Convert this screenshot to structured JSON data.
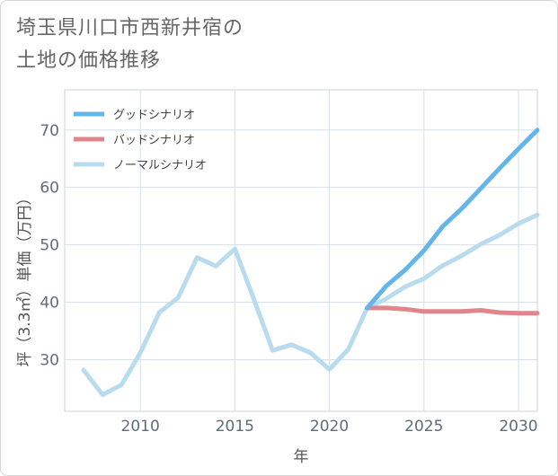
{
  "title_lines": [
    "埼玉県川口市西新井宿の",
    "土地の価格推移"
  ],
  "chart_data": {
    "type": "line",
    "xlabel": "年",
    "ylabel": "坪（3.3㎡）単価（万円）",
    "xlim": [
      2006,
      2031
    ],
    "ylim": [
      21,
      77
    ],
    "xticks": [
      2010,
      2015,
      2020,
      2025,
      2030
    ],
    "yticks": [
      30,
      40,
      50,
      60,
      70
    ],
    "grid": true,
    "legend_position": "top-left",
    "series": [
      {
        "name": "グッドシナリオ",
        "color": "#63b5ea",
        "width": 5,
        "x": [
          2022,
          2023,
          2024,
          2025,
          2026,
          2027,
          2028,
          2029,
          2030,
          2031
        ],
        "y": [
          39.0,
          42.8,
          45.6,
          49.0,
          53.2,
          56.3,
          59.8,
          63.3,
          66.7,
          70.0
        ]
      },
      {
        "name": "バッドシナリオ",
        "color": "#de868c",
        "width": 5,
        "x": [
          2022,
          2023,
          2024,
          2025,
          2026,
          2027,
          2028,
          2029,
          2030,
          2031
        ],
        "y": [
          39.0,
          39.0,
          38.8,
          38.4,
          38.4,
          38.4,
          38.6,
          38.2,
          38.1,
          38.1
        ]
      },
      {
        "name": "ノーマルシナリオ",
        "color": "#b8dcee",
        "width": 5,
        "x": [
          2007,
          2008,
          2009,
          2010,
          2011,
          2012,
          2013,
          2014,
          2015,
          2016,
          2017,
          2018,
          2019,
          2020,
          2021,
          2022,
          2023,
          2024,
          2025,
          2026,
          2027,
          2028,
          2029,
          2030,
          2031
        ],
        "y": [
          28.2,
          23.9,
          25.6,
          31.2,
          38.2,
          40.8,
          47.8,
          46.3,
          49.3,
          40.6,
          31.6,
          32.6,
          31.2,
          28.3,
          31.8,
          39.0,
          40.6,
          42.7,
          44.1,
          46.4,
          48.1,
          50.1,
          51.7,
          53.7,
          55.2
        ]
      }
    ]
  }
}
